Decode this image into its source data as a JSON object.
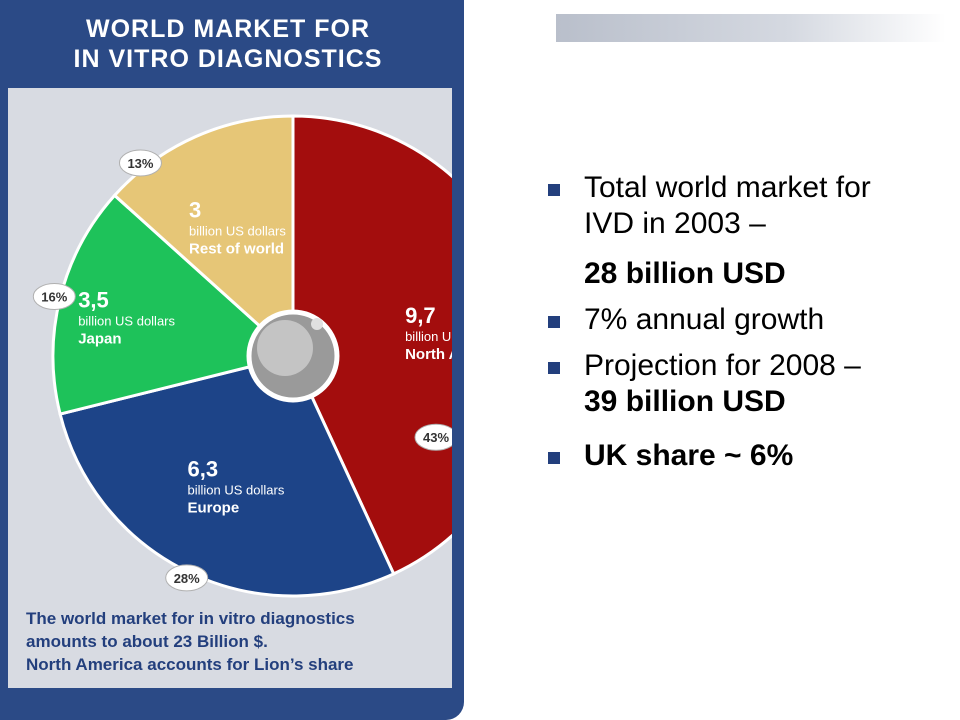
{
  "panel": {
    "title_line1": "WORLD MARKET FOR",
    "title_line2": "IN VITRO DIAGNOSTICS",
    "caption_line1": "The world market for in vitro diagnostics",
    "caption_line2": "amounts  to about  23 Billion $.",
    "caption_line3": "North America accounts for Lion’s share"
  },
  "chart_data": {
    "type": "pie",
    "title": "WORLD MARKET FOR IN VITRO DIAGNOSTICS",
    "unit_label": "billion US dollars",
    "slices": [
      {
        "value_label": "9,7",
        "value": 9.7,
        "label": "North America",
        "percent_label": "43%",
        "color": "#a30d0d"
      },
      {
        "value_label": "6,3",
        "value": 6.3,
        "label": "Europe",
        "percent_label": "28%",
        "color": "#1d4488"
      },
      {
        "value_label": "3,5",
        "value": 3.5,
        "label": "Japan",
        "percent_label": "16%",
        "color": "#1ec25a"
      },
      {
        "value_label": "3",
        "value": 3,
        "label": "Rest of world",
        "percent_label": "13%",
        "color": "#e6c677"
      }
    ]
  },
  "bullets": {
    "b1_line1": "Total world market for",
    "b1_line2": "IVD in 2003 –",
    "b1_line3": "28 billion USD",
    "b2": "7% annual growth",
    "b3_line1": "Projection for 2008 –",
    "b3_line2": "39 billion USD",
    "b4": "UK share ~ 6%"
  },
  "colors": {
    "panel_bg": "#2b4a86",
    "inner_bg": "#d8dbe2",
    "bullet_square": "#233f7d"
  }
}
